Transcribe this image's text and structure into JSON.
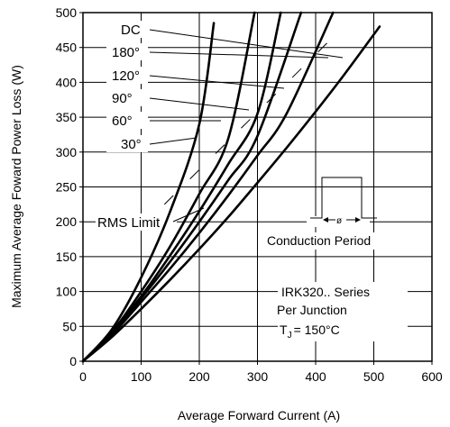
{
  "chart_data": {
    "type": "line",
    "xlabel": "Average Forward Current (A)",
    "ylabel": "Maximum Average Foward Power Loss (W)",
    "xlim": [
      0,
      600
    ],
    "ylim": [
      0,
      500
    ],
    "x_ticks": [
      "0",
      "100",
      "200",
      "300",
      "400",
      "500",
      "600"
    ],
    "y_ticks": [
      "0",
      "50",
      "100",
      "150",
      "200",
      "250",
      "300",
      "350",
      "400",
      "450",
      "500"
    ],
    "grid": true,
    "series": [
      {
        "name": "DC",
        "x": [
          0,
          50,
          100,
          150,
          200,
          250,
          300,
          350,
          400,
          450,
          510
        ],
        "y": [
          0,
          35,
          75,
          117,
          161,
          207,
          256,
          306,
          358,
          412,
          480
        ]
      },
      {
        "name": "180°",
        "x": [
          0,
          50,
          100,
          150,
          200,
          250,
          300,
          350,
          430
        ],
        "y": [
          0,
          38,
          85,
          133,
          184,
          238,
          295,
          355,
          500
        ]
      },
      {
        "name": "120°",
        "x": [
          0,
          50,
          100,
          150,
          200,
          250,
          300,
          375
        ],
        "y": [
          0,
          40,
          90,
          143,
          200,
          260,
          323,
          500
        ]
      },
      {
        "name": "90°",
        "x": [
          0,
          50,
          100,
          150,
          200,
          250,
          300,
          340
        ],
        "y": [
          0,
          41,
          93,
          152,
          215,
          283,
          355,
          500
        ]
      },
      {
        "name": "60°",
        "x": [
          0,
          50,
          100,
          150,
          200,
          250,
          295
        ],
        "y": [
          0,
          42,
          100,
          165,
          240,
          320,
          500
        ]
      },
      {
        "name": "30°",
        "x": [
          0,
          50,
          100,
          150,
          200,
          225
        ],
        "y": [
          0,
          46,
          120,
          215,
          340,
          485
        ]
      }
    ],
    "rms_limit_label": "RMS Limit",
    "legend_labels": [
      "DC",
      "180°",
      "120°",
      "90°",
      "60°",
      "30°"
    ],
    "annotations": {
      "conduction": "Conduction Period",
      "phi": "ø",
      "series_text": "IRK320.. Series",
      "per_junction": "Per Junction",
      "tj_prefix": "T",
      "tj_sub": "J",
      "tj_suffix": "= 150°C"
    }
  }
}
